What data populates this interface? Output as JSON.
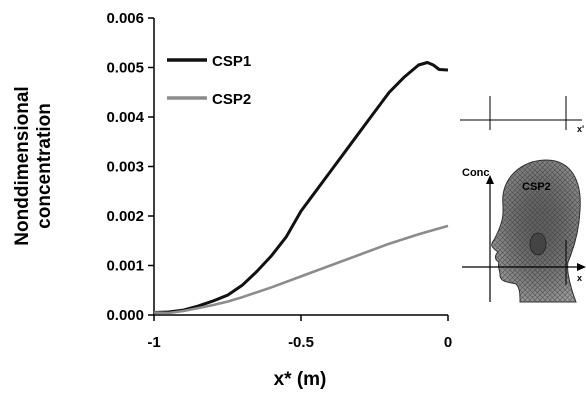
{
  "chart_data": {
    "type": "line",
    "title": "",
    "xlabel": "x* (m)",
    "ylabel_line1": "Nonddimensional",
    "ylabel_line2": "concentration",
    "xlim": [
      -1,
      0
    ],
    "ylim": [
      0,
      0.006
    ],
    "x_ticks": [
      -1,
      -0.5,
      0
    ],
    "x_tick_labels": [
      "-1",
      "-0.5",
      "0"
    ],
    "y_ticks": [
      0,
      0.001,
      0.002,
      0.003,
      0.004,
      0.005,
      0.006
    ],
    "y_tick_labels": [
      "0.000",
      "0.001",
      "0.002",
      "0.003",
      "0.004",
      "0.005",
      "0.006"
    ],
    "grid": false,
    "legend_position": "top-left",
    "series": [
      {
        "name": "CSP1",
        "color": "#111111",
        "x": [
          -1,
          -0.95,
          -0.9,
          -0.85,
          -0.8,
          -0.75,
          -0.7,
          -0.65,
          -0.6,
          -0.55,
          -0.5,
          -0.45,
          -0.4,
          -0.35,
          -0.3,
          -0.25,
          -0.2,
          -0.15,
          -0.1,
          -0.07,
          -0.05,
          -0.03,
          0
        ],
        "y": [
          5e-05,
          6e-05,
          0.0001,
          0.00018,
          0.00028,
          0.0004,
          0.0006,
          0.00088,
          0.0012,
          0.00158,
          0.0021,
          0.0025,
          0.0029,
          0.0033,
          0.0037,
          0.0041,
          0.0045,
          0.0048,
          0.00505,
          0.0051,
          0.00505,
          0.00496,
          0.00495
        ]
      },
      {
        "name": "CSP2",
        "color": "#8c8c8c",
        "x": [
          -1,
          -0.95,
          -0.9,
          -0.85,
          -0.8,
          -0.75,
          -0.7,
          -0.6,
          -0.5,
          -0.4,
          -0.3,
          -0.2,
          -0.1,
          0
        ],
        "y": [
          5e-05,
          4e-05,
          8e-05,
          0.00014,
          0.0002,
          0.00027,
          0.00036,
          0.00056,
          0.00078,
          0.001,
          0.00122,
          0.00144,
          0.00163,
          0.0018
        ]
      }
    ]
  },
  "inset": {
    "conc_label": "Conc",
    "csp_label": "CSP2",
    "x_axis_letter": "x",
    "top_axis_letter": "x'"
  }
}
